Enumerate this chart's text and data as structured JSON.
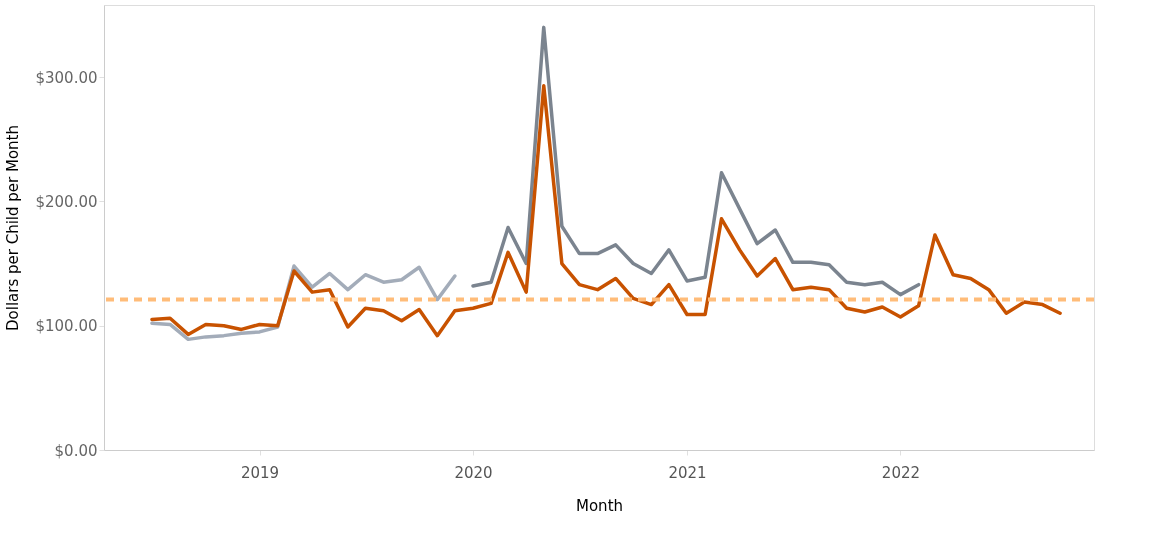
{
  "chart_data": {
    "type": "line",
    "xlabel": "Month",
    "ylabel": "Dollars per Child per Month",
    "xlim": [
      "2018-04-10",
      "2022-11-28"
    ],
    "xticks": [
      {
        "value": "2019-01-01",
        "label": "2019"
      },
      {
        "value": "2020-01-01",
        "label": "2020"
      },
      {
        "value": "2021-01-01",
        "label": "2021"
      },
      {
        "value": "2022-01-01",
        "label": "2022"
      }
    ],
    "ylim": [
      0,
      358
    ],
    "yticks": [
      {
        "value": 0,
        "label": "$0.00"
      },
      {
        "value": 100,
        "label": "$100.00"
      },
      {
        "value": 200,
        "label": "$200.00"
      },
      {
        "value": 300,
        "label": "$300.00"
      }
    ],
    "grid": false,
    "legend": false,
    "marker": "none",
    "line_style": "solid",
    "x": [
      "2018-07",
      "2018-08",
      "2018-09",
      "2018-10",
      "2018-11",
      "2018-12",
      "2019-01",
      "2019-02",
      "2019-03",
      "2019-04",
      "2019-05",
      "2019-06",
      "2019-07",
      "2019-08",
      "2019-09",
      "2019-10",
      "2019-11",
      "2019-12",
      "2020-01",
      "2020-02",
      "2020-03",
      "2020-04",
      "2020-05",
      "2020-06",
      "2020-07",
      "2020-08",
      "2020-09",
      "2020-10",
      "2020-11",
      "2020-12",
      "2021-01",
      "2021-02",
      "2021-03",
      "2021-04",
      "2021-05",
      "2021-06",
      "2021-07",
      "2021-08",
      "2021-09",
      "2021-10",
      "2021-11",
      "2021-12",
      "2022-01",
      "2022-02",
      "2022-03",
      "2022-04",
      "2022-05",
      "2022-06",
      "2022-07",
      "2022-08",
      "2022-09",
      "2022-10"
    ],
    "series": [
      {
        "color": "#a3acb9",
        "x": [
          "2018-07",
          "2018-08",
          "2018-09",
          "2018-10",
          "2018-11",
          "2018-12",
          "2019-01",
          "2019-02",
          "2019-03",
          "2019-04",
          "2019-05",
          "2019-06",
          "2019-07",
          "2019-08",
          "2019-09",
          "2019-10",
          "2019-11",
          "2019-12"
        ],
        "values": [
          102,
          101,
          89,
          91,
          92,
          94,
          95,
          99,
          148,
          131,
          142,
          129,
          141,
          135,
          137,
          147,
          121,
          140
        ]
      },
      {
        "color": "#7b848f",
        "x": [
          "2020-01",
          "2020-02",
          "2020-03",
          "2020-04",
          "2020-05",
          "2020-06",
          "2020-07",
          "2020-08",
          "2020-09",
          "2020-10",
          "2020-11",
          "2020-12",
          "2021-01",
          "2021-02",
          "2021-03",
          "2021-04",
          "2021-05",
          "2021-06",
          "2021-07",
          "2021-08",
          "2021-09",
          "2021-10",
          "2021-11",
          "2021-12",
          "2022-01",
          "2022-02"
        ],
        "values": [
          132,
          135,
          179,
          150,
          340,
          180,
          158,
          158,
          165,
          150,
          142,
          161,
          136,
          139,
          223,
          194,
          166,
          177,
          151,
          151,
          149,
          135,
          133,
          135,
          125,
          133
        ]
      },
      {
        "color": "#c85200",
        "values": [
          105,
          106,
          93,
          101,
          100,
          97,
          101,
          100,
          144,
          127,
          129,
          99,
          114,
          112,
          104,
          113,
          92,
          112,
          114,
          118,
          159,
          127,
          293,
          150,
          133,
          129,
          138,
          122,
          117,
          133,
          109,
          109,
          186,
          161,
          140,
          154,
          129,
          131,
          129,
          114,
          111,
          115,
          107,
          116,
          173,
          141,
          138,
          129,
          110,
          119,
          117,
          110
        ]
      }
    ],
    "ref_lines": [
      {
        "axis": "y",
        "value": 121,
        "color": "#ffbc79",
        "line_style": "dashed"
      }
    ]
  }
}
